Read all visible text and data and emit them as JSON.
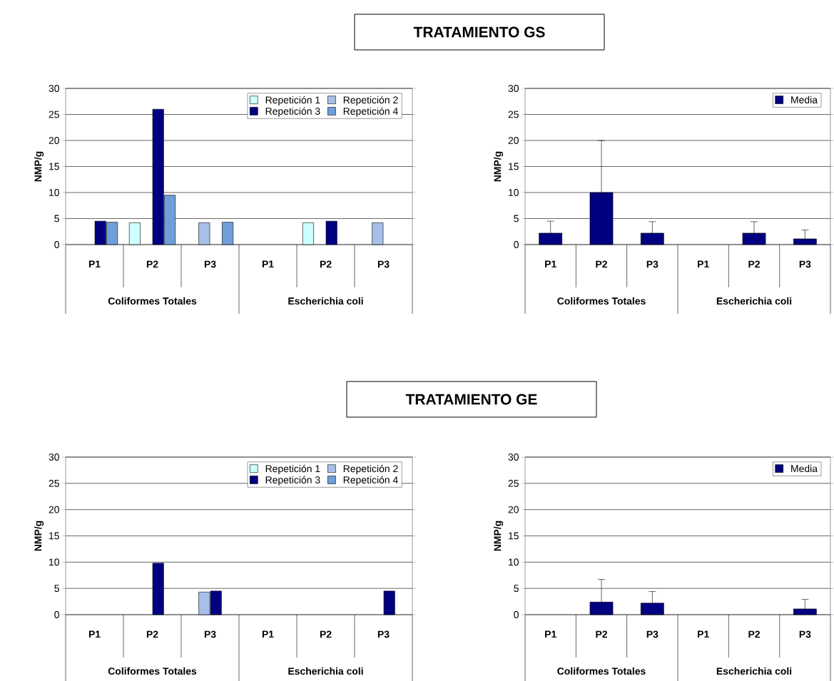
{
  "chart_data": [
    {
      "type": "bar",
      "ylabel": "NMP/g",
      "categories": [
        "P1",
        "P2",
        "P3",
        "P1",
        "P2",
        "P3"
      ],
      "annotations": [
        "Coliformes Totales",
        "Escherichia coli"
      ],
      "ylim": [
        0,
        30
      ],
      "yticks": [
        0,
        5,
        10,
        15,
        20,
        25,
        30
      ],
      "grid": "y",
      "legend": "top right",
      "series": [
        {
          "name": "Repetición 1",
          "color": "#ccffff",
          "values": [
            null,
            4.2,
            null,
            null,
            4.2,
            null
          ]
        },
        {
          "name": "Repetición 2",
          "color": "#a8c0e8",
          "values": [
            null,
            null,
            4.2,
            null,
            null,
            4.2
          ]
        },
        {
          "name": "Repetición 3",
          "color": "#000080",
          "values": [
            4.5,
            26,
            null,
            null,
            4.5,
            null
          ]
        },
        {
          "name": "Repetición 4",
          "color": "#6f9fd8",
          "values": [
            4.3,
            9.5,
            4.3,
            null,
            null,
            null
          ]
        }
      ]
    },
    {
      "type": "bar",
      "title": "TRATAMIENTO GS",
      "ylabel": "NMP/g",
      "categories": [
        "P1",
        "P2",
        "P3",
        "P1",
        "P2",
        "P3"
      ],
      "annotations": [
        "Coliformes Totales",
        "Escherichia coli"
      ],
      "ylim": [
        0,
        30
      ],
      "yticks": [
        0,
        5,
        10,
        15,
        20,
        25,
        30
      ],
      "grid": "y",
      "legend": "top right",
      "series": [
        {
          "name": "Media",
          "color": "#000080",
          "values": [
            2.2,
            10,
            2.2,
            null,
            2.2,
            1.1
          ],
          "errors": [
            [
              2.2,
              4.5
            ],
            [
              10,
              20
            ],
            [
              2.2,
              4.4
            ],
            null,
            [
              2.2,
              4.4
            ],
            [
              1.1,
              2.8
            ]
          ]
        }
      ]
    },
    {
      "type": "bar",
      "ylabel": "NMP/g",
      "categories": [
        "P1",
        "P2",
        "P3",
        "P1",
        "P2",
        "P3"
      ],
      "annotations": [
        "Coliformes Totales",
        "Escherichia coli"
      ],
      "ylim": [
        0,
        30
      ],
      "yticks": [
        0,
        5,
        10,
        15,
        20,
        25,
        30
      ],
      "grid": "y",
      "legend": "top right",
      "series": [
        {
          "name": "Repetición 1",
          "color": "#ccffff",
          "values": [
            null,
            null,
            null,
            null,
            null,
            null
          ]
        },
        {
          "name": "Repetición 2",
          "color": "#a8c0e8",
          "values": [
            null,
            null,
            4.3,
            null,
            null,
            null
          ]
        },
        {
          "name": "Repetición 3",
          "color": "#000080",
          "values": [
            null,
            9.8,
            4.5,
            null,
            null,
            4.5
          ]
        },
        {
          "name": "Repetición 4",
          "color": "#6f9fd8",
          "values": [
            null,
            null,
            null,
            null,
            null,
            null
          ]
        }
      ]
    },
    {
      "type": "bar",
      "title": "TRATAMIENTO GE",
      "ylabel": "NMP/g",
      "categories": [
        "P1",
        "P2",
        "P3",
        "P1",
        "P2",
        "P3"
      ],
      "annotations": [
        "Coliformes Totales",
        "Escherichia coli"
      ],
      "ylim": [
        0,
        30
      ],
      "yticks": [
        0,
        5,
        10,
        15,
        20,
        25,
        30
      ],
      "grid": "y",
      "legend": "top right",
      "series": [
        {
          "name": "Media",
          "color": "#000080",
          "values": [
            null,
            2.4,
            2.2,
            null,
            null,
            1.1
          ],
          "errors": [
            null,
            [
              2.4,
              6.7
            ],
            [
              2.2,
              4.4
            ],
            null,
            null,
            [
              1.1,
              2.9
            ]
          ]
        }
      ]
    }
  ]
}
